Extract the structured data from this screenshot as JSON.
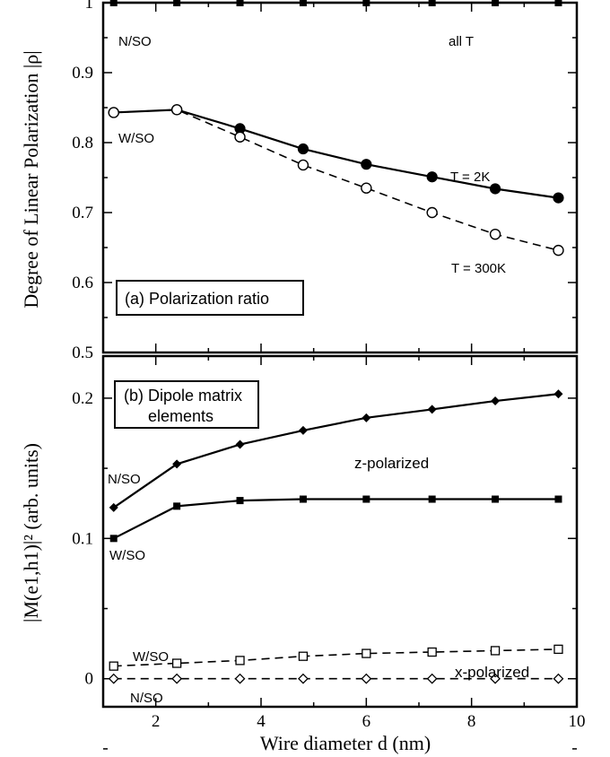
{
  "chart_data": [
    {
      "type": "line",
      "panel_label": "(a) Polarization ratio",
      "ylabel": "Degree of Linear Polarization |ρ|",
      "xlim": [
        1,
        10
      ],
      "ylim": [
        0.5,
        1.0
      ],
      "yticks": [
        "0.5",
        "0.6",
        "0.7",
        "0.8",
        "0.9",
        "1"
      ],
      "x": [
        1.2,
        2.4,
        3.6,
        4.8,
        6.0,
        7.25,
        8.45,
        9.65
      ],
      "series": [
        {
          "name": "N/SO all T",
          "style": "solid",
          "marker": "filled-square",
          "values": [
            1.0,
            1.0,
            1.0,
            1.0,
            1.0,
            1.0,
            1.0,
            1.0
          ]
        },
        {
          "name": "W/SO T = 2K",
          "style": "solid",
          "marker": "filled-circle",
          "values": [
            0.843,
            0.847,
            0.82,
            0.791,
            0.769,
            0.751,
            0.734,
            0.721
          ]
        },
        {
          "name": "W/SO T = 300K",
          "style": "dashed",
          "marker": "open-circle",
          "values": [
            0.843,
            0.847,
            0.808,
            0.768,
            0.735,
            0.7,
            0.669,
            0.646
          ]
        }
      ],
      "annotations": [
        "N/SO",
        "all T",
        "W/SO",
        "T = 2K",
        "T = 300K"
      ]
    },
    {
      "type": "line",
      "panel_label": [
        "(b) Dipole matrix",
        "elements"
      ],
      "ylabel": "|M(e1,h1)|² (arb. units)",
      "xlabel": "Wire diameter d (nm)",
      "xlim": [
        1,
        10
      ],
      "ylim": [
        -0.02,
        0.23
      ],
      "xticks": [
        "2",
        "4",
        "6",
        "8",
        "10"
      ],
      "yticks": [
        "0",
        "0.1",
        "0.2"
      ],
      "x": [
        1.2,
        2.4,
        3.6,
        4.8,
        6.0,
        7.25,
        8.45,
        9.65
      ],
      "series": [
        {
          "name": "z-polarized N/SO",
          "style": "solid",
          "marker": "filled-diamond",
          "values": [
            0.122,
            0.153,
            0.167,
            0.177,
            0.186,
            0.192,
            0.198,
            0.203
          ]
        },
        {
          "name": "z-polarized W/SO",
          "style": "solid",
          "marker": "filled-square",
          "values": [
            0.1,
            0.123,
            0.127,
            0.128,
            0.128,
            0.128,
            0.128,
            0.128
          ]
        },
        {
          "name": "x-polarized W/SO",
          "style": "dashed",
          "marker": "open-square",
          "values": [
            0.009,
            0.011,
            0.013,
            0.016,
            0.018,
            0.019,
            0.02,
            0.021
          ]
        },
        {
          "name": "x-polarized N/SO",
          "style": "dashed",
          "marker": "open-diamond",
          "values": [
            0.0,
            0.0,
            0.0,
            0.0,
            0.0,
            0.0,
            0.0,
            0.0
          ]
        }
      ],
      "annotations": [
        "N/SO",
        "W/SO",
        "z-polarized",
        "W/SO",
        "x-polarized",
        "N/SO"
      ]
    }
  ]
}
